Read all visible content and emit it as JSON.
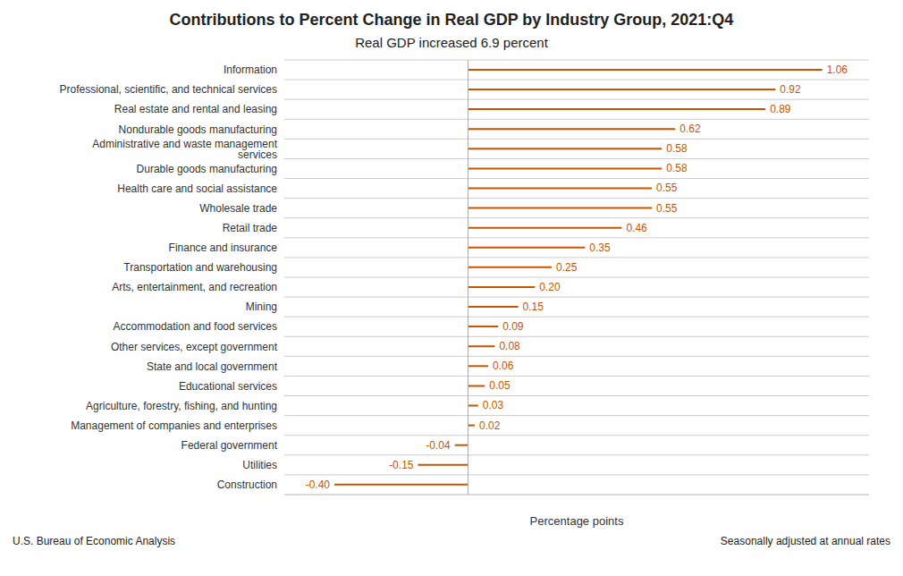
{
  "chart_data": {
    "type": "bar",
    "orientation": "horizontal",
    "title": "Contributions to Percent Change in Real GDP by Industry Group, 2021:Q4",
    "subtitle": "Real GDP increased 6.9 percent",
    "xlabel": "Percentage points",
    "annotations": [
      "U.S. Bureau of Economic Analysis",
      "Seasonally adjusted at annual rates"
    ],
    "categories": [
      "Construction",
      "Utilities",
      "Federal government",
      "Management of companies and enterprises",
      "Agriculture, forestry, fishing, and hunting",
      "Educational services",
      "State and local government",
      "Other services, except government",
      "Accommodation and food services",
      "Mining",
      "Arts, entertainment, and recreation",
      "Transportation and warehousing",
      "Finance and insurance",
      "Retail trade",
      "Wholesale trade",
      "Health care and social assistance",
      "Durable goods manufacturing",
      "Administrative and waste management services",
      "Nondurable goods manufacturing",
      "Real estate and rental and leasing",
      "Professional, scientific, and technical services",
      "Information"
    ],
    "values": [
      -0.4,
      -0.15,
      -0.04,
      0.02,
      0.03,
      0.05,
      0.06,
      0.08,
      0.09,
      0.15,
      0.2,
      0.25,
      0.35,
      0.46,
      0.55,
      0.55,
      0.58,
      0.58,
      0.62,
      0.89,
      0.92,
      1.06
    ],
    "value_labels": [
      "-0.40",
      "-0.15",
      "-0.04",
      "0.02",
      "0.03",
      "0.05",
      "0.06",
      "0.08",
      "0.09",
      "0.15",
      "0.20",
      "0.25",
      "0.35",
      "0.46",
      "0.55",
      "0.55",
      "0.58",
      "0.58",
      "0.62",
      "0.89",
      "0.92",
      "1.06"
    ],
    "color": "#C85400",
    "xlim": [
      -0.55,
      1.2
    ],
    "grid": true,
    "data_labels": true,
    "tick_labels": "y"
  }
}
